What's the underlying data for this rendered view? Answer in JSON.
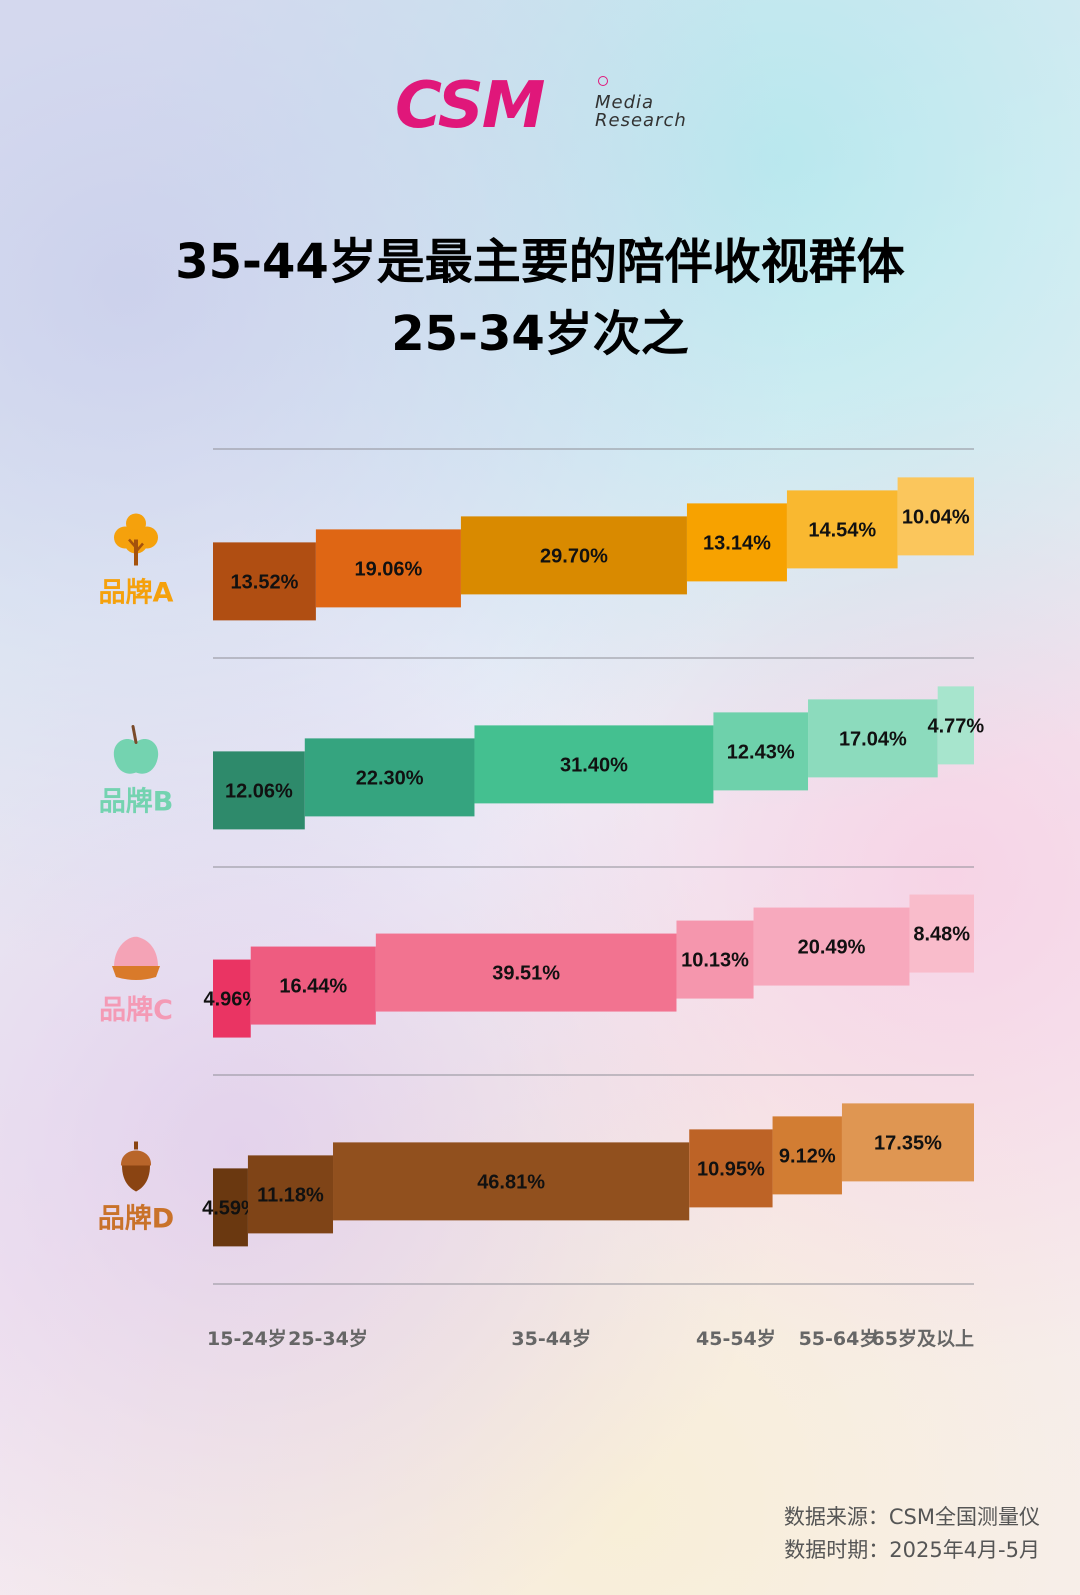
{
  "logo": {
    "wordmark": "CSM",
    "line1": "Media",
    "line2": "Research"
  },
  "title": {
    "line1": "35-44岁是最主要的陪伴收视群体",
    "line2": "25-34岁次之"
  },
  "footer": {
    "source": "数据来源：CSM全国测量仪",
    "period": "数据时期：2025年4月-5月"
  },
  "chart_data": {
    "type": "bar",
    "subtype": "stacked-horizontal-stepped",
    "categories": [
      "15-24岁",
      "25-34岁",
      "35-44岁",
      "45-54岁",
      "55-64岁",
      "65岁及以上"
    ],
    "series": [
      {
        "name": "品牌A",
        "icon": "tree-icon",
        "values": [
          13.52,
          19.06,
          29.7,
          13.14,
          14.54,
          10.04
        ],
        "labels": [
          "13.52%",
          "19.06%",
          "29.70%",
          "13.14%",
          "14.54%",
          "10.04%"
        ],
        "label_color": "#f5a10c",
        "icon_color": "#f5a10c",
        "colors": [
          "#b04e12",
          "#df6614",
          "#d98a00",
          "#f7a200",
          "#f9b830",
          "#fbc65c"
        ]
      },
      {
        "name": "品牌B",
        "icon": "apple-icon",
        "values": [
          12.06,
          22.3,
          31.4,
          12.43,
          17.04,
          4.77
        ],
        "labels": [
          "12.06%",
          "22.30%",
          "31.40%",
          "12.43%",
          "17.04%",
          "4.77%"
        ],
        "label_color": "#74d3b0",
        "icon_color": "#74d3b0",
        "colors": [
          "#2e8a6b",
          "#35a47f",
          "#44c090",
          "#6ed1ab",
          "#8cdbbd",
          "#a7e5cd"
        ]
      },
      {
        "name": "品牌C",
        "icon": "peach-icon",
        "values": [
          4.96,
          16.44,
          39.51,
          10.13,
          20.49,
          8.48
        ],
        "labels": [
          "4.96%",
          "16.44%",
          "39.51%",
          "10.13%",
          "20.49%",
          "8.48%"
        ],
        "label_color": "#f49ab5",
        "icon_color": "#f4a3b6",
        "colors": [
          "#ea3463",
          "#ee5c80",
          "#f27390",
          "#f596ad",
          "#f7a9bd",
          "#f9bccb"
        ]
      },
      {
        "name": "品牌D",
        "icon": "acorn-icon",
        "values": [
          4.59,
          11.18,
          46.81,
          10.95,
          9.12,
          17.35
        ],
        "labels": [
          "4.59%",
          "11.18%",
          "46.81%",
          "10.95%",
          "9.12%",
          "17.35%"
        ],
        "label_color": "#c9722a",
        "icon_color": "#b8652a",
        "colors": [
          "#6a3810",
          "#7f4417",
          "#91501e",
          "#bd6326",
          "#d27d33",
          "#df9652"
        ]
      }
    ],
    "grid": true,
    "legend": "none"
  }
}
